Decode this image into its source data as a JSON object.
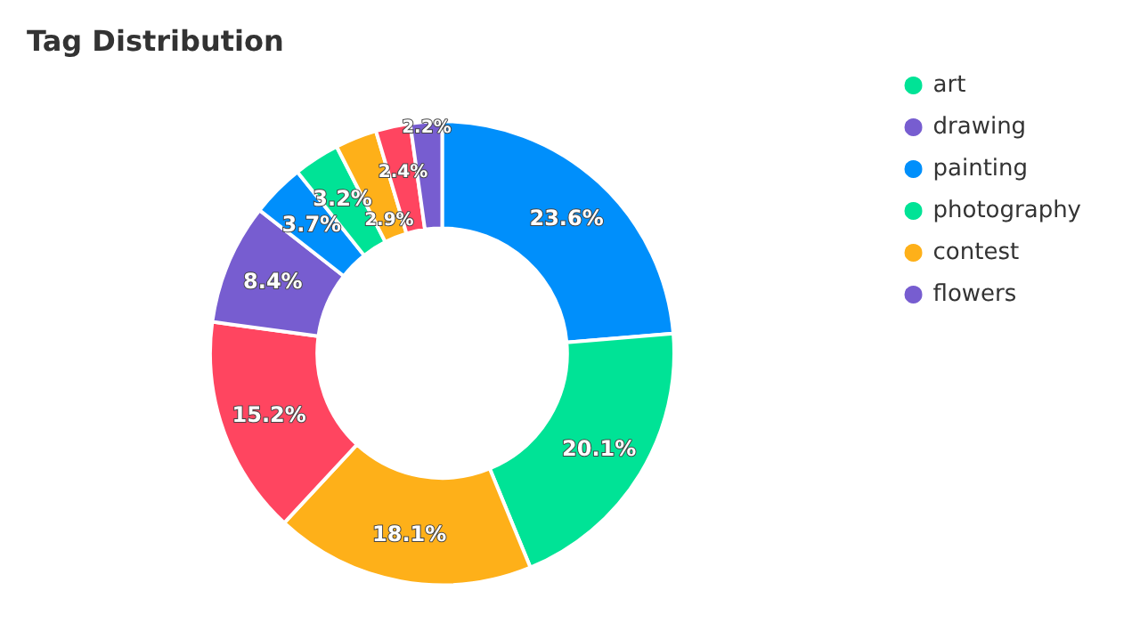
{
  "chart_data": {
    "type": "donut",
    "title": "Tag Distribution",
    "categories": [
      null,
      "art",
      null,
      null,
      "drawing",
      "painting",
      "photography",
      "contest",
      null,
      "flowers"
    ],
    "values": [
      23.6,
      20.1,
      18.1,
      15.2,
      8.4,
      3.7,
      3.2,
      2.9,
      2.4,
      2.2
    ],
    "value_labels": [
      "23.6%",
      "20.1%",
      "18.1%",
      "15.2%",
      "8.4%",
      "3.7%",
      "3.2%",
      "2.9%",
      "2.4%",
      "2.2%"
    ],
    "colors": [
      "#008ffb",
      "#00e396",
      "#feb019",
      "#ff4560",
      "#775dd0",
      "#008ffb",
      "#00e396",
      "#feb019",
      "#ff4560",
      "#775dd0"
    ],
    "legend": "right"
  }
}
